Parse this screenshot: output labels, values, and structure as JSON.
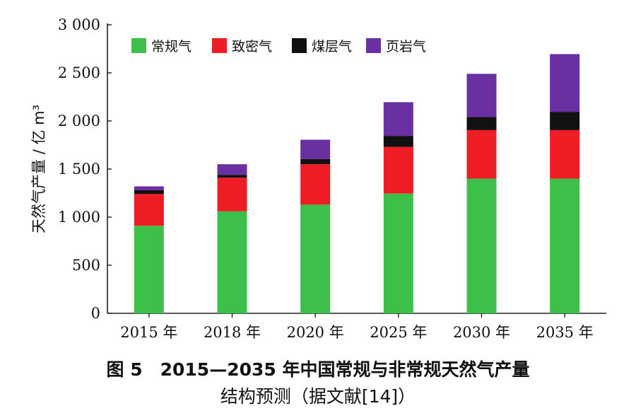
{
  "chart_data": {
    "type": "bar",
    "stacked": true,
    "categories": [
      "2015 年",
      "2018 年",
      "2020 年",
      "2025 年",
      "2030 年",
      "2035 年"
    ],
    "series": [
      {
        "name": "常规气",
        "color": "#3cc04a",
        "values": [
          910,
          1060,
          1130,
          1245,
          1400,
          1400
        ]
      },
      {
        "name": "致密气",
        "color": "#ee1c25",
        "values": [
          330,
          350,
          420,
          485,
          505,
          505
        ]
      },
      {
        "name": "煤层气",
        "color": "#111111",
        "values": [
          40,
          30,
          55,
          115,
          135,
          190
        ]
      },
      {
        "name": "页岩气",
        "color": "#6a2fa0",
        "values": [
          40,
          110,
          200,
          350,
          450,
          600
        ]
      }
    ],
    "ylabel": "天然气产量 / 亿 m³",
    "ylim": [
      0,
      3000
    ],
    "yticks": [
      "0",
      "500",
      "1 000",
      "1 500",
      "2 000",
      "2 500",
      "3 000"
    ],
    "ytick_values": [
      0,
      500,
      1000,
      1500,
      2000,
      2500,
      3000
    ],
    "legend_position": "top-left",
    "grid": false
  },
  "caption": {
    "line1": "图 5　2015—2035 年中国常规与非常规天然气产量",
    "line2": "结构预测（据文献[14]）"
  }
}
